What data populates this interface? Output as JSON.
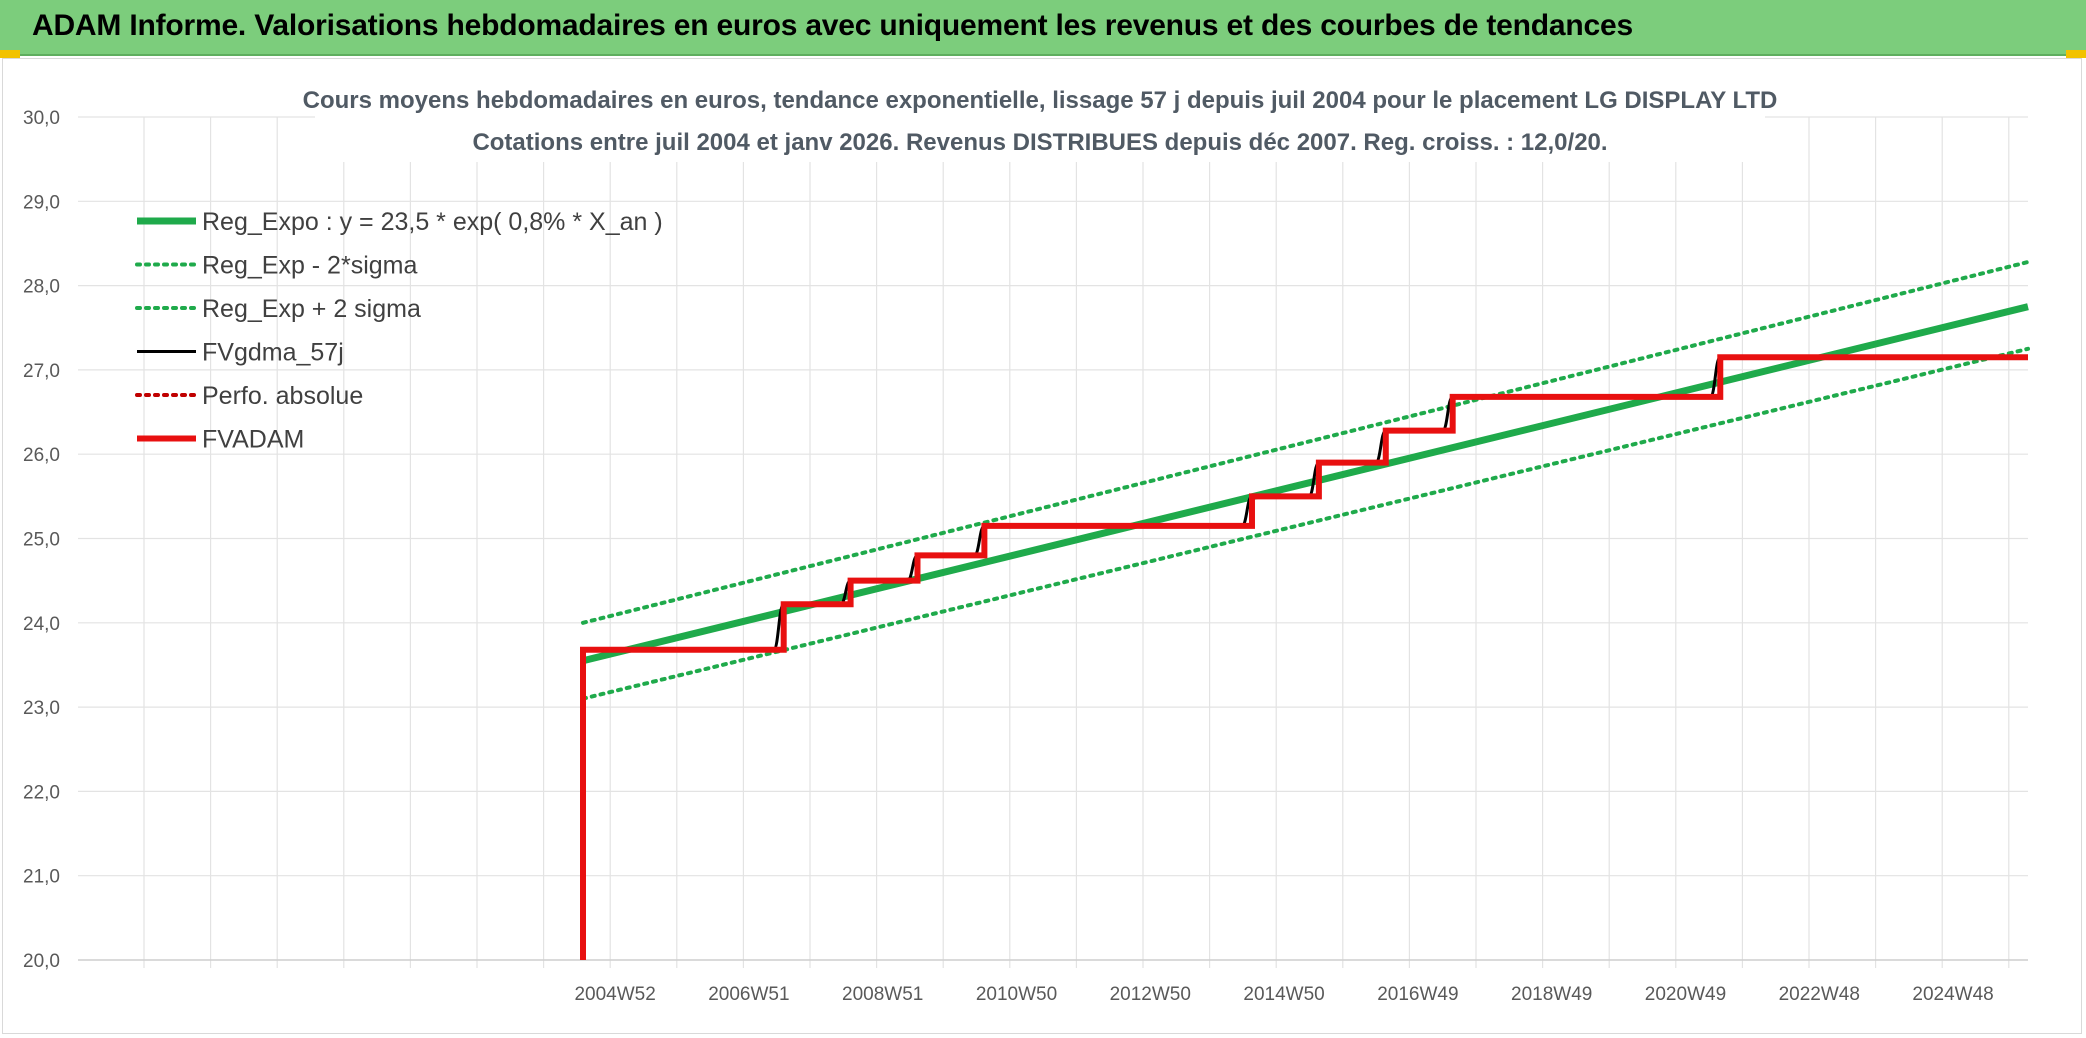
{
  "header": {
    "title": "ADAM Informe. Valorisations hebdomadaires en euros avec uniquement les revenus et des courbes de tendances"
  },
  "colors": {
    "banner": "#7ccd7c",
    "reg_expo": "#1faa4b",
    "fvgdma": "#000000",
    "fvadam": "#e81010",
    "perfo": "#c00000",
    "grid": "#e3e3e3"
  },
  "chart_data": {
    "type": "line",
    "title": "Cours moyens hebdomadaires en euros, tendance exponentielle, lissage 57 j depuis juil 2004 pour le placement LG DISPLAY LTD",
    "subtitle": "Cotations entre juil 2004 et janv 2026. Revenus DISTRIBUES depuis déc 2007. Reg. croiss. : 12,0/20.",
    "xlabel": "",
    "ylabel": "",
    "ylim": [
      20,
      30
    ],
    "yticks": [
      "20,0",
      "21,0",
      "22,0",
      "23,0",
      "24,0",
      "25,0",
      "26,0",
      "27,0",
      "28,0",
      "29,0",
      "30,0"
    ],
    "xticks": [
      "2004W52",
      "2006W51",
      "2008W51",
      "2010W50",
      "2012W50",
      "2014W50",
      "2016W49",
      "2018W49",
      "2020W49",
      "2022W48",
      "2024W48"
    ],
    "xlim": [
      2004.5,
      2026.1
    ],
    "grid": true,
    "legend_position": "top-left",
    "series": [
      {
        "name": "Reg_Expo : y = 23,5 * exp( 0,8% *  X_an )",
        "style": "thick-solid",
        "color": "#1faa4b",
        "x": [
          2004.5,
          2026.1
        ],
        "y": [
          23.55,
          27.75
        ]
      },
      {
        "name": "Reg_Exp - 2*sigma",
        "style": "dotted",
        "color": "#1faa4b",
        "x": [
          2004.5,
          2026.1
        ],
        "y": [
          23.1,
          27.25
        ]
      },
      {
        "name": "Reg_Exp + 2 sigma",
        "style": "dotted",
        "color": "#1faa4b",
        "x": [
          2004.5,
          2026.1
        ],
        "y": [
          24.0,
          28.28
        ]
      },
      {
        "name": "FVgdma_57j",
        "style": "thin-solid",
        "color": "#000000",
        "x": [
          2004.5,
          2007.35,
          2007.5,
          2008.35,
          2008.5,
          2009.35,
          2009.5,
          2010.35,
          2010.5,
          2014.35,
          2014.5,
          2015.35,
          2015.5,
          2016.35,
          2016.5,
          2017.35,
          2017.5,
          2021.35,
          2021.5,
          2026.1
        ],
        "y": [
          23.68,
          23.68,
          24.22,
          24.22,
          24.5,
          24.5,
          24.8,
          24.8,
          25.15,
          25.15,
          25.5,
          25.5,
          25.9,
          25.9,
          26.28,
          26.28,
          26.68,
          26.68,
          27.15,
          27.15
        ]
      },
      {
        "name": "Perfo. absolue",
        "style": "dotted",
        "color": "#c00000",
        "x": [],
        "y": []
      },
      {
        "name": "FVADAM",
        "style": "thick-step",
        "color": "#e81010",
        "x": [
          2004.5,
          2004.5,
          2007.5,
          2008.5,
          2009.5,
          2010.5,
          2014.5,
          2015.5,
          2016.5,
          2017.5,
          2021.5,
          2026.1
        ],
        "y": [
          20.0,
          23.68,
          24.22,
          24.5,
          24.8,
          25.15,
          25.5,
          25.9,
          26.28,
          26.68,
          27.15,
          27.15
        ]
      }
    ]
  }
}
